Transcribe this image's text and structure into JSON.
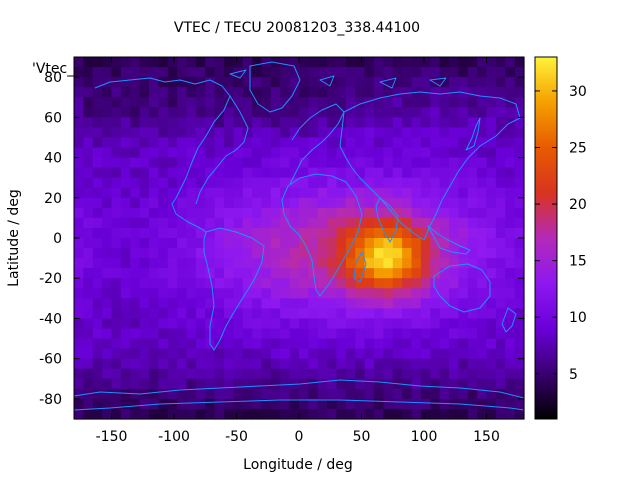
{
  "chart_data": {
    "type": "heatmap",
    "title": "VTEC / TECU 20081203_338.44100",
    "series_label": "'Vtec_",
    "xlabel": "Longitude / deg",
    "ylabel": "Latitude / deg",
    "xlim": [
      -180,
      180
    ],
    "ylim": [
      -90,
      90
    ],
    "x_ticks": [
      -150,
      -100,
      -50,
      0,
      50,
      100,
      150
    ],
    "y_ticks": [
      -80,
      -60,
      -40,
      -20,
      0,
      20,
      40,
      60,
      80
    ],
    "colorbar": {
      "range": [
        1,
        33
      ],
      "ticks": [
        5,
        10,
        15,
        20,
        25,
        30
      ],
      "palette": [
        "#000000",
        "#3a0070",
        "#6a00d8",
        "#8e18f0",
        "#b42ab8",
        "#d9341f",
        "#e75b00",
        "#f5a000",
        "#fff23a"
      ]
    },
    "features": {
      "peak": {
        "lon": 70,
        "lat": -10,
        "value": 33
      },
      "equatorial_anomaly_center": {
        "lon": 40,
        "lat": -5,
        "value": 18
      },
      "background_value": 8,
      "polar_value": 4
    },
    "overlay": "coastlines",
    "overlay_color": "#1e90ff"
  }
}
